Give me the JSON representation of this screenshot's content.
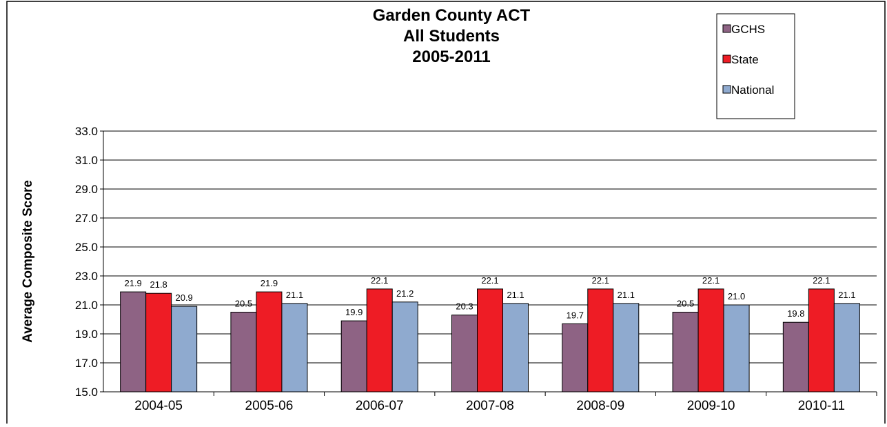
{
  "chart_data": {
    "type": "bar",
    "title": [
      "Garden County ACT",
      "All Students",
      "2005-2011"
    ],
    "y_label": "Average Composite Score",
    "categories": [
      "2004-05",
      "2005-06",
      "2006-07",
      "2007-08",
      "2008-09",
      "2009-10",
      "2010-11"
    ],
    "series": [
      {
        "name": "GCHS",
        "color": "#8e6384",
        "values": [
          21.9,
          20.5,
          19.9,
          20.3,
          19.7,
          20.5,
          19.8
        ],
        "value_labels": [
          "21.9",
          "20.5",
          "19.9",
          "20.3",
          "19.7",
          "20.5",
          "19.8"
        ]
      },
      {
        "name": "State",
        "color": "#ee1c25",
        "values": [
          21.8,
          21.9,
          22.1,
          22.1,
          22.1,
          22.1,
          22.1
        ],
        "value_labels": [
          "21.8",
          "21.9",
          "22.1",
          "22.1",
          "22.1",
          "22.1",
          "22.1"
        ]
      },
      {
        "name": "National",
        "color": "#8faacf",
        "values": [
          20.9,
          21.1,
          21.2,
          21.1,
          21.1,
          21.0,
          21.1
        ],
        "value_labels": [
          "20.9",
          "21.1",
          "21.2",
          "21.1",
          "21.1",
          "21.0",
          "21.1"
        ]
      }
    ],
    "ylim": [
      15,
      33
    ],
    "yticks": [
      {
        "value": 15,
        "label": "15.0"
      },
      {
        "value": 17,
        "label": "17.0"
      },
      {
        "value": 19,
        "label": "19.0"
      },
      {
        "value": 21,
        "label": "21.0"
      },
      {
        "value": 23,
        "label": "23.0"
      },
      {
        "value": 25,
        "label": "25.0"
      },
      {
        "value": 27,
        "label": "27.0"
      },
      {
        "value": 29,
        "label": "29.0"
      },
      {
        "value": 31,
        "label": "31.0"
      },
      {
        "value": 33,
        "label": "33.0"
      }
    ],
    "grid": true,
    "legend": "top-right"
  }
}
